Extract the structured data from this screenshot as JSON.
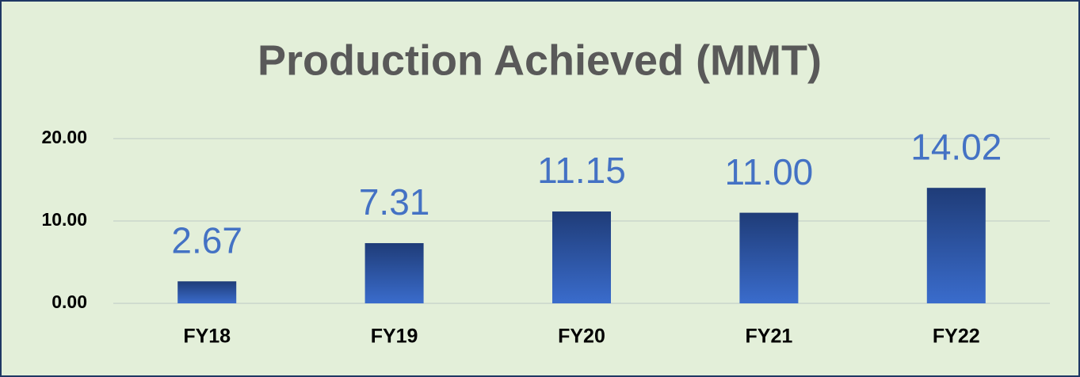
{
  "chart_data": {
    "type": "bar",
    "title": "Production Achieved (MMT)",
    "categories": [
      "FY18",
      "FY19",
      "FY20",
      "FY21",
      "FY22"
    ],
    "values": [
      2.67,
      7.31,
      11.15,
      11.0,
      14.02
    ],
    "value_labels": [
      "2.67",
      "7.31",
      "11.15",
      "11.00",
      "14.02"
    ],
    "color": "#3a6ccc",
    "ylim": [
      0,
      20
    ],
    "yticks": [
      {
        "value": 0,
        "label": "0.00"
      },
      {
        "value": 10,
        "label": "10.00"
      },
      {
        "value": 20,
        "label": "20.00"
      }
    ],
    "grid": true
  }
}
